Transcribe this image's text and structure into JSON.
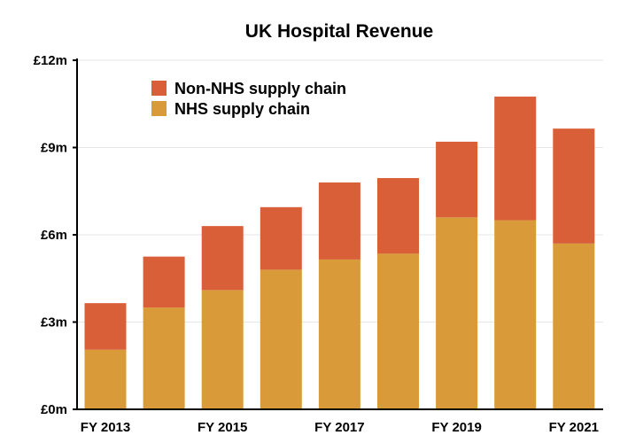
{
  "chart_data": {
    "type": "bar",
    "stacked": true,
    "title": "UK Hospital Revenue",
    "xlabel": "",
    "ylabel": "",
    "categories": [
      "FY 2013",
      "FY 2014",
      "FY 2015",
      "FY 2016",
      "FY 2017",
      "FY 2018",
      "FY 2019",
      "FY 2020",
      "FY 2021"
    ],
    "x_tick_labels": [
      "FY 2013",
      "",
      "FY 2015",
      "",
      "FY 2017",
      "",
      "FY 2019",
      "",
      "FY 2021"
    ],
    "y_ticks": [
      0,
      3,
      6,
      9,
      12
    ],
    "y_tick_labels": [
      "£0m",
      "£3m",
      "£6m",
      "£9m",
      "£12m"
    ],
    "ylim": [
      0,
      12
    ],
    "y_unit": "£m",
    "grid": true,
    "legend_position": "top-left",
    "series": [
      {
        "name": "NHS supply chain",
        "color": "#d99a3a",
        "values": [
          2.05,
          3.5,
          4.1,
          4.8,
          5.15,
          5.35,
          6.6,
          6.5,
          5.7
        ]
      },
      {
        "name": "Non-NHS supply chain",
        "color": "#d85f38",
        "values": [
          1.6,
          1.75,
          2.2,
          2.15,
          2.65,
          2.6,
          2.6,
          4.25,
          3.95
        ]
      }
    ],
    "legend_order": [
      "Non-NHS supply chain",
      "NHS supply chain"
    ]
  }
}
